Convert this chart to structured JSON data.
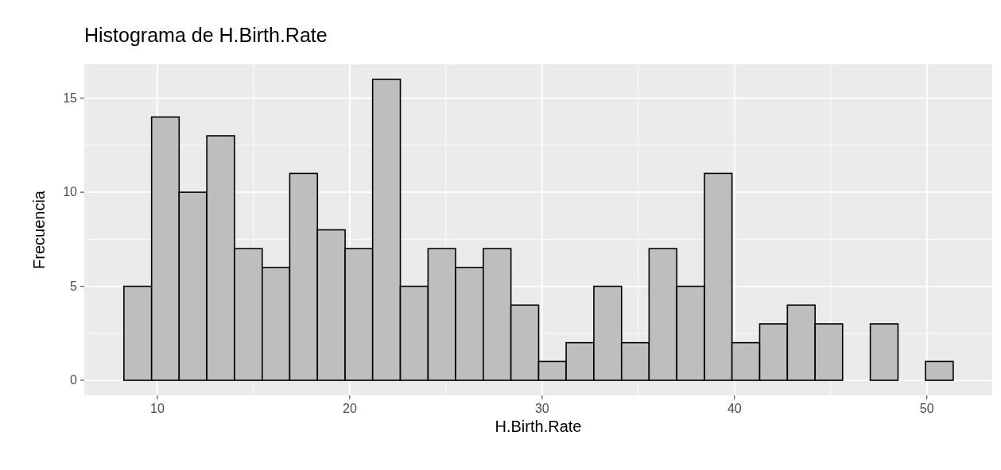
{
  "chart_data": {
    "type": "histogram",
    "title": "Histograma de H.Birth.Rate",
    "xlabel": "H.Birth.Rate",
    "ylabel": "Frecuencia",
    "bins": [
      8.26,
      9.7,
      11.13,
      12.57,
      14.01,
      15.45,
      16.88,
      18.32,
      19.76,
      21.19,
      22.63,
      24.07,
      25.5,
      26.94,
      28.38,
      29.82,
      31.25,
      32.69,
      34.13,
      35.56,
      37.0,
      38.44,
      39.87,
      41.31,
      42.75,
      44.19,
      45.62,
      47.06,
      48.5,
      49.93,
      51.37
    ],
    "values": [
      5,
      14,
      10,
      13,
      7,
      6,
      11,
      8,
      7,
      16,
      5,
      7,
      6,
      7,
      4,
      1,
      2,
      5,
      2,
      7,
      5,
      11,
      2,
      3,
      4,
      3,
      0,
      3,
      0,
      1
    ],
    "color": "#bebebe",
    "xlim": [
      6.2,
      53.4
    ],
    "xticks": [
      10,
      20,
      30,
      40,
      50
    ],
    "ylim": [
      -0.8,
      16.8
    ],
    "yticks": [
      0,
      5,
      10,
      15
    ],
    "grid": true
  }
}
